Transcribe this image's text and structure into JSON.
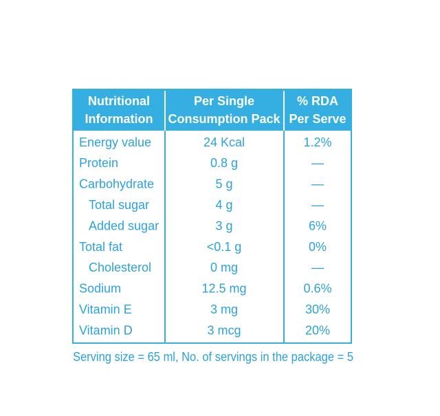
{
  "table": {
    "header": [
      [
        "Nutritional",
        "Information"
      ],
      [
        "Per Single",
        "Consumption Pack"
      ],
      [
        "% RDA",
        "Per Serve"
      ]
    ],
    "rows": [
      {
        "name": "Energy value",
        "amount": "24 Kcal",
        "rda": "1.2%"
      },
      {
        "name": "Protein",
        "amount": "0.8 g",
        "rda": "—"
      },
      {
        "name": "Carbohydrate",
        "amount": "5 g",
        "rda": "—",
        "sub": [
          {
            "name": "Total sugar",
            "amount": "4 g",
            "rda": "—"
          },
          {
            "name": "Added sugar",
            "amount": "3 g",
            "rda": "6%"
          }
        ]
      },
      {
        "name": "Total fat",
        "amount": "<0.1 g",
        "rda": "0%",
        "sub": [
          {
            "name": "Cholesterol",
            "amount": "0 mg",
            "rda": "—"
          }
        ]
      },
      {
        "name": "Sodium",
        "amount": "12.5 mg",
        "rda": "0.6%"
      },
      {
        "name": "Vitamin E",
        "amount": "3 mg",
        "rda": "30%"
      },
      {
        "name": "Vitamin D",
        "amount": "3 mcg",
        "rda": "20%"
      }
    ],
    "footer": "Serving size = 65 ml, No. of servings in the package = 5"
  }
}
